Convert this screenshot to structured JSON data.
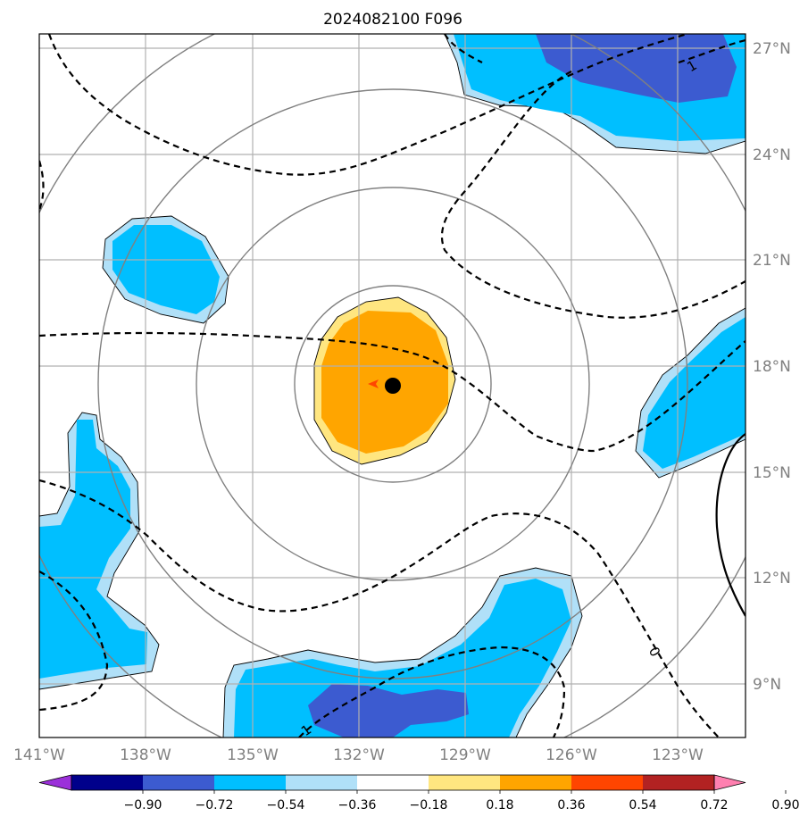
{
  "title": "2024082100 F096",
  "x_ticks": [
    "141°W",
    "138°W",
    "135°W",
    "132°W",
    "129°W",
    "126°W",
    "123°W"
  ],
  "y_ticks": [
    "27°N",
    "24°N",
    "21°N",
    "18°N",
    "15°N",
    "12°N",
    "9°N"
  ],
  "colorbar": {
    "tick_labels": [
      "−0.90",
      "−0.72",
      "−0.54",
      "−0.36",
      "−0.18",
      "0.18",
      "0.36",
      "0.54",
      "0.72",
      "0.90"
    ],
    "colors": [
      "#9b30d9",
      "#00008b",
      "#3c5bd0",
      "#00bfff",
      "#b0e0f8",
      "#ffffff",
      "#ffe680",
      "#ffa500",
      "#ff4500",
      "#b22222",
      "#ff80b0"
    ]
  },
  "contour_labels": [
    "1",
    "0",
    "1"
  ],
  "colors": {
    "dark_blue_fill": "#3c5bd0",
    "blue_fill": "#00bfff",
    "light_blue_fill": "#b0e0f8",
    "light_yellow_fill": "#ffe680",
    "orange_fill": "#ffa500",
    "storm_center": "#000000",
    "motion_arrow": "#ff4500"
  }
}
